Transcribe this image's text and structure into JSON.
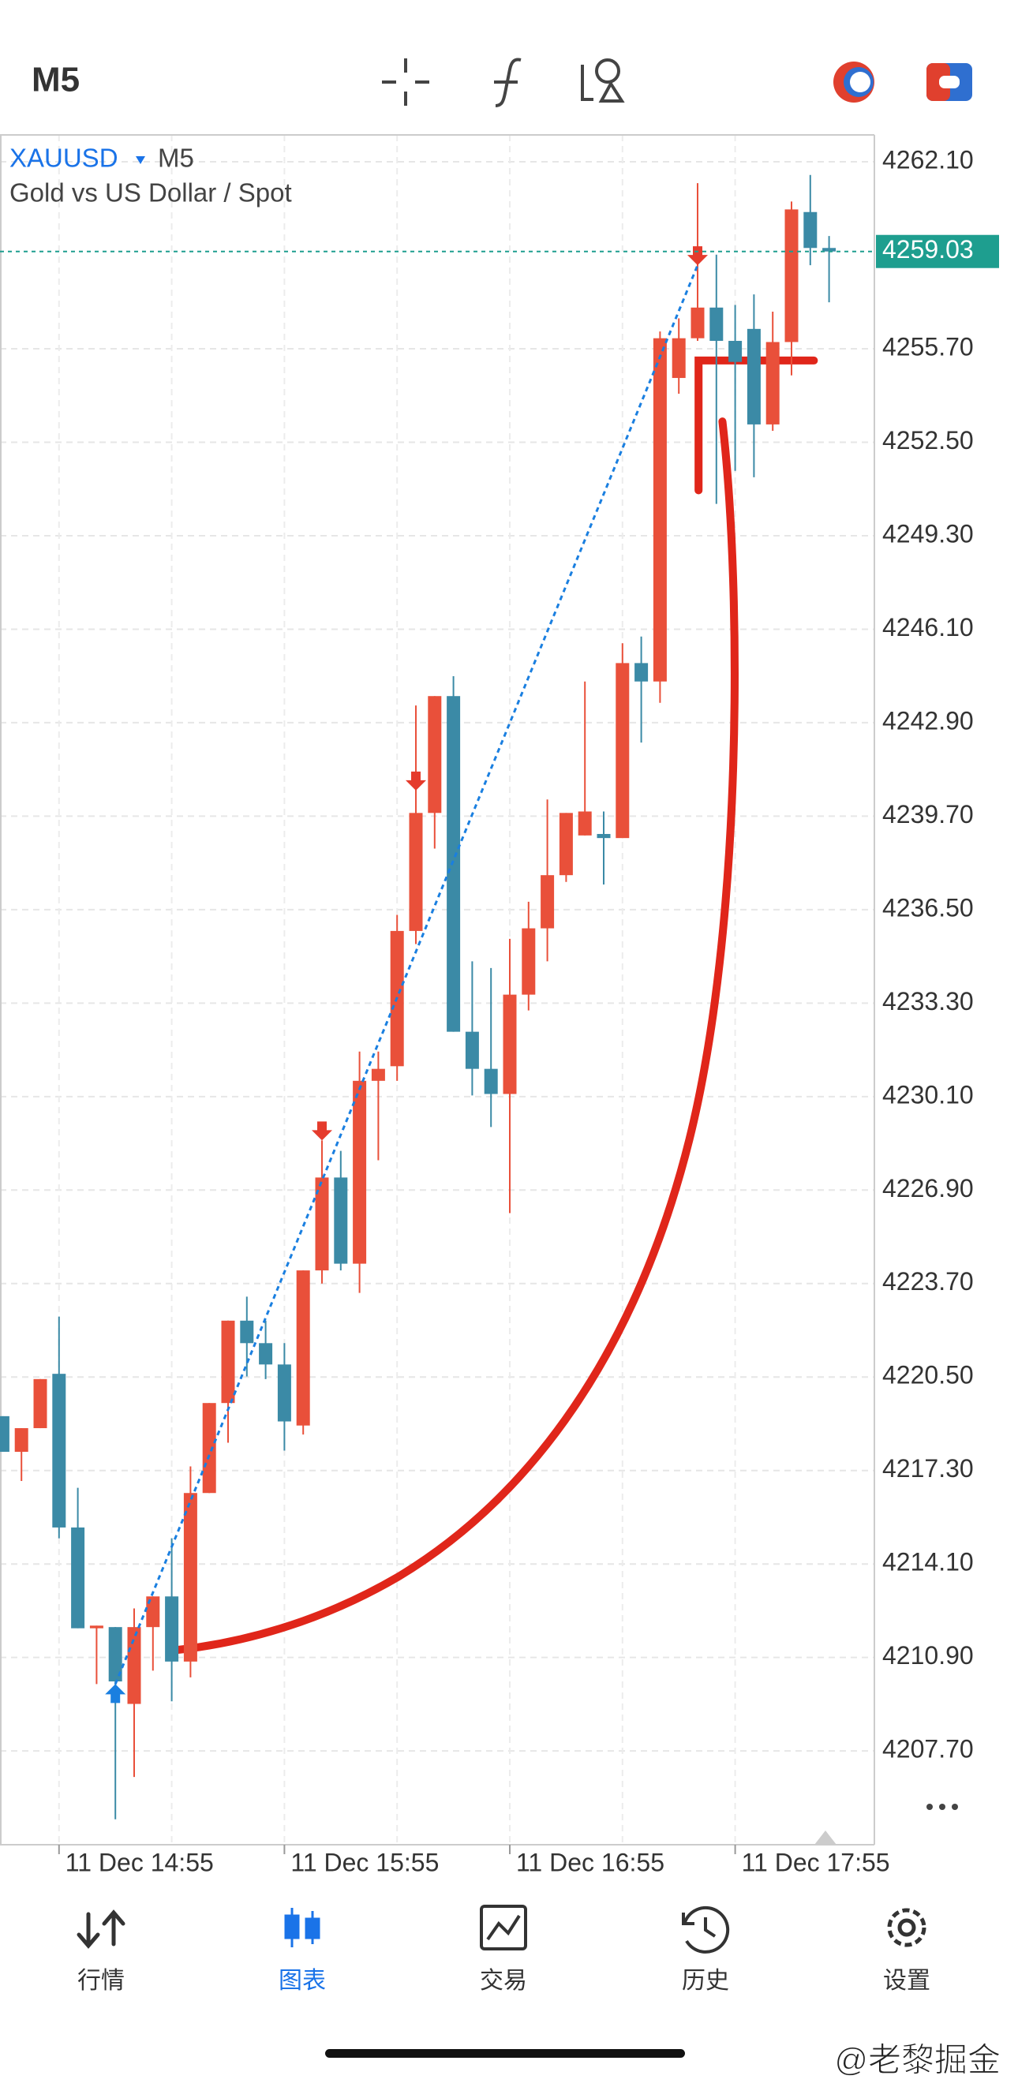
{
  "toolbar": {
    "timeframe": "M5"
  },
  "chart_data": {
    "type": "candlestick",
    "symbol": "XAUUSD",
    "timeframe": "M5",
    "description": "Gold vs US Dollar / Spot",
    "categories": [
      null,
      null,
      null,
      "11 Dec 14:55",
      null,
      null,
      null,
      null,
      null,
      null,
      null,
      null,
      null,
      null,
      null,
      "11 Dec 15:55",
      null,
      null,
      null,
      null,
      null,
      null,
      null,
      null,
      null,
      null,
      null,
      "11 Dec 16:55",
      null,
      null,
      null,
      null,
      null,
      null,
      null,
      null,
      null,
      null,
      null,
      "11 Dec 17:55",
      null,
      null,
      null,
      null,
      null
    ],
    "open": [
      4219.16,
      4217.94,
      4218.75,
      4220.61,
      4215.35,
      4211.9,
      4211.94,
      4209.31,
      4211.94,
      4212.99,
      4210.76,
      4216.53,
      4219.61,
      4222.43,
      4221.66,
      4220.93,
      4218.84,
      4224.15,
      4227.33,
      4224.38,
      4230.64,
      4231.14,
      4235.77,
      4239.81,
      4243.81,
      4232.32,
      4231.05,
      4230.19,
      4233.59,
      4235.86,
      4237.68,
      4239.04,
      4239.09,
      4238.95,
      4244.94,
      4244.31,
      4254.7,
      4256.06,
      4257.11,
      4255.97,
      4256.38,
      4253.11,
      4255.93,
      4260.38,
      4259.15
    ],
    "high": [
      4219.16,
      4218.75,
      4220.43,
      4222.57,
      4216.71,
      4211.99,
      4211.94,
      4212.58,
      4212.99,
      4214.98,
      4217.44,
      4219.61,
      4222.43,
      4223.25,
      4222.43,
      4221.66,
      4224.15,
      4228.6,
      4228.24,
      4231.64,
      4231.64,
      4236.32,
      4243.49,
      4243.81,
      4244.49,
      4234.73,
      4234.5,
      4235.5,
      4236.77,
      4240.27,
      4239.81,
      4244.31,
      4239.86,
      4245.62,
      4245.85,
      4256.29,
      4256.74,
      4261.37,
      4258.92,
      4257.2,
      4257.56,
      4256.97,
      4260.74,
      4261.65,
      4259.56
    ],
    "low": [
      4217.94,
      4216.94,
      4218.75,
      4214.98,
      4211.9,
      4209.99,
      4205.36,
      4206.81,
      4210.45,
      4209.4,
      4210.22,
      4216.53,
      4218.25,
      4220.52,
      4220.43,
      4217.98,
      4218.53,
      4223.7,
      4224.15,
      4223.38,
      4227.92,
      4230.64,
      4235.32,
      4238.59,
      4232.32,
      4230.14,
      4229.06,
      4226.11,
      4233.05,
      4234.73,
      4237.45,
      4239.04,
      4237.36,
      4238.95,
      4242.22,
      4243.58,
      4254.16,
      4255.97,
      4250.39,
      4251.52,
      4251.3,
      4252.89,
      4254.79,
      4258.56,
      4257.29
    ],
    "close": [
      4217.94,
      4218.75,
      4220.43,
      4215.35,
      4211.9,
      4211.99,
      4210.08,
      4211.94,
      4212.99,
      4210.76,
      4216.53,
      4219.61,
      4222.43,
      4221.66,
      4220.93,
      4218.98,
      4224.15,
      4227.33,
      4224.38,
      4230.64,
      4231.05,
      4235.77,
      4239.81,
      4243.81,
      4232.32,
      4231.05,
      4230.19,
      4233.59,
      4235.86,
      4237.68,
      4239.81,
      4239.86,
      4238.95,
      4244.94,
      4244.31,
      4256.06,
      4256.06,
      4257.11,
      4255.97,
      4255.25,
      4253.11,
      4255.93,
      4260.47,
      4259.15,
      4259.03
    ],
    "up_color": "#e9503a",
    "down_color": "#3b8aa6",
    "ylim": [
      4204.49,
      4263.02
    ],
    "yticks": [
      {
        "value": 4262.1,
        "label": "4262.10"
      },
      {
        "value": 4255.7,
        "label": "4255.70"
      },
      {
        "value": 4252.5,
        "label": "4252.50"
      },
      {
        "value": 4249.3,
        "label": "4249.30"
      },
      {
        "value": 4246.1,
        "label": "4246.10"
      },
      {
        "value": 4242.9,
        "label": "4242.90"
      },
      {
        "value": 4239.7,
        "label": "4239.70"
      },
      {
        "value": 4236.5,
        "label": "4236.50"
      },
      {
        "value": 4233.3,
        "label": "4233.30"
      },
      {
        "value": 4230.1,
        "label": "4230.10"
      },
      {
        "value": 4226.9,
        "label": "4226.90"
      },
      {
        "value": 4223.7,
        "label": "4223.70"
      },
      {
        "value": 4220.5,
        "label": "4220.50"
      },
      {
        "value": 4217.3,
        "label": "4217.30"
      },
      {
        "value": 4214.1,
        "label": "4214.10"
      },
      {
        "value": 4210.9,
        "label": "4210.90"
      },
      {
        "value": 4207.7,
        "label": "4207.70"
      }
    ],
    "grid": true,
    "last_price": {
      "value": 4259.03,
      "label": "4259.03",
      "color": "#1e9e8f"
    },
    "markers": [
      {
        "x": 6,
        "y": 4209.99,
        "direction": "buy",
        "color": "#1a7fe0"
      },
      {
        "x": 17,
        "y": 4228.6,
        "direction": "sell",
        "color": "#e53b2c"
      },
      {
        "x": 22,
        "y": 4240.58,
        "direction": "sell",
        "color": "#e53b2c"
      },
      {
        "x": 37,
        "y": 4258.56,
        "direction": "sell",
        "color": "#e53b2c"
      }
    ]
  },
  "nav": {
    "active": 1,
    "items": [
      {
        "label": "行情"
      },
      {
        "label": "图表"
      },
      {
        "label": "交易"
      },
      {
        "label": "历史"
      },
      {
        "label": "设置"
      }
    ]
  },
  "watermark": "@老黎掘金"
}
